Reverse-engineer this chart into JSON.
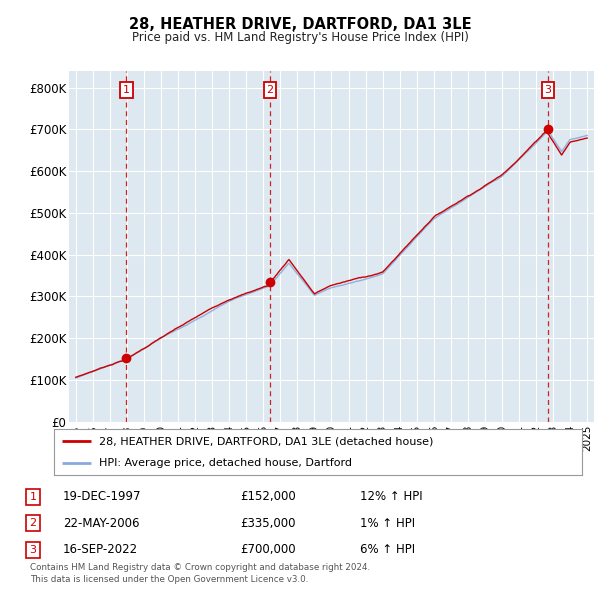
{
  "title": "28, HEATHER DRIVE, DARTFORD, DA1 3LE",
  "subtitle": "Price paid vs. HM Land Registry's House Price Index (HPI)",
  "legend_label_red": "28, HEATHER DRIVE, DARTFORD, DA1 3LE (detached house)",
  "legend_label_blue": "HPI: Average price, detached house, Dartford",
  "footer_line1": "Contains HM Land Registry data © Crown copyright and database right 2024.",
  "footer_line2": "This data is licensed under the Open Government Licence v3.0.",
  "transactions": [
    {
      "num": 1,
      "date": "19-DEC-1997",
      "price": 152000,
      "hpi_pct": "12%",
      "direction": "↑"
    },
    {
      "num": 2,
      "date": "22-MAY-2006",
      "price": 335000,
      "hpi_pct": "1%",
      "direction": "↑"
    },
    {
      "num": 3,
      "date": "16-SEP-2022",
      "price": 700000,
      "hpi_pct": "6%",
      "direction": "↑"
    }
  ],
  "transaction_years": [
    1997.97,
    2006.39,
    2022.71
  ],
  "transaction_prices": [
    152000,
    335000,
    700000
  ],
  "ylim": [
    0,
    840000
  ],
  "yticks": [
    0,
    100000,
    200000,
    300000,
    400000,
    500000,
    600000,
    700000,
    800000
  ],
  "ytick_labels": [
    "£0",
    "£100K",
    "£200K",
    "£300K",
    "£400K",
    "£500K",
    "£600K",
    "£700K",
    "£800K"
  ],
  "color_red": "#cc0000",
  "color_blue": "#88aadd",
  "color_vline": "#cc0000",
  "bg_plot": "#dde8f0",
  "bg_figure": "#ffffff",
  "grid_color": "#ffffff"
}
